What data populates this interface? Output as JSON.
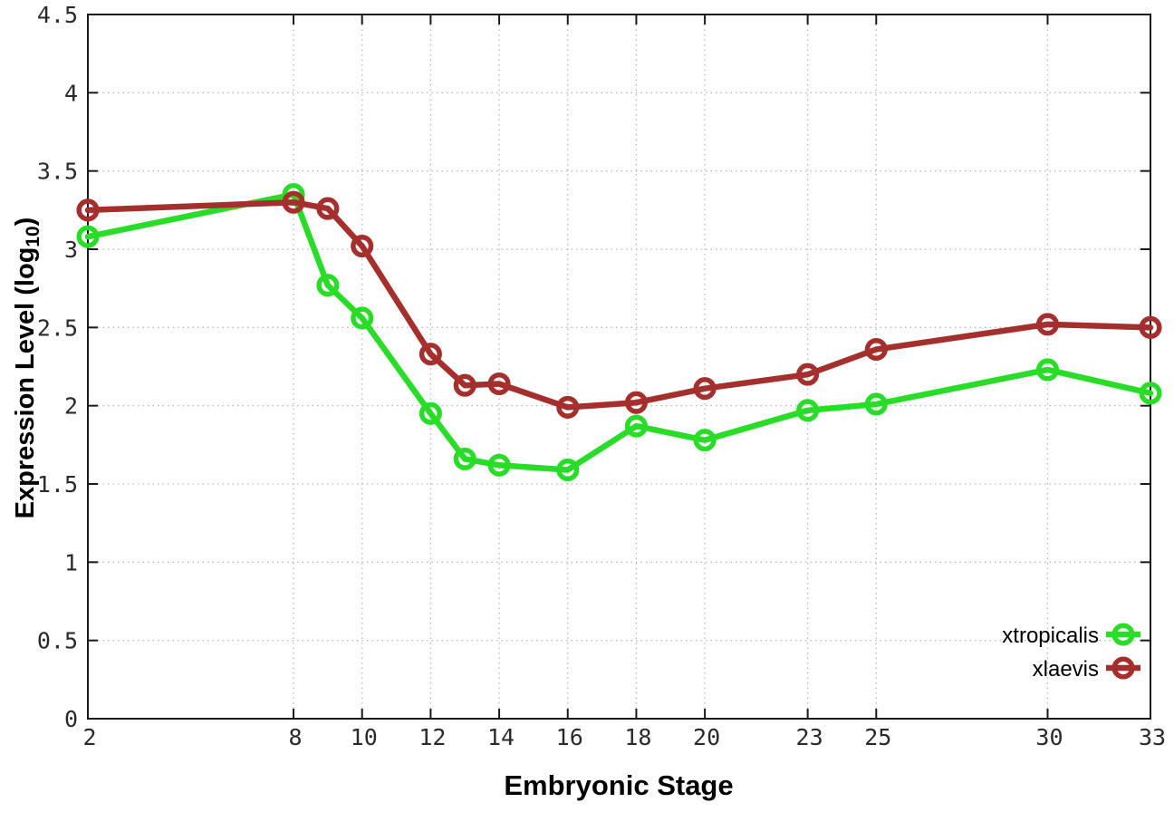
{
  "figure": {
    "background": "#ffffff",
    "border_color": "#1a1a1a",
    "grid_color": "#b8b8b8"
  },
  "chart_data": {
    "type": "line",
    "title": "",
    "xlabel": "Embryonic Stage",
    "ylabel": "Expression Level (log10)",
    "ylabel_parts": {
      "pre": "Expression Level (log",
      "sub": "10",
      "post": ")"
    },
    "xlim": [
      2,
      33
    ],
    "ylim": [
      0,
      4.5
    ],
    "grid": true,
    "legend_position": "inside-bottom-right",
    "x": [
      2,
      8,
      9,
      10,
      12,
      13,
      14,
      16,
      18,
      20,
      23,
      25,
      30,
      33
    ],
    "x_tick_labels": [
      "2",
      "8",
      "10",
      "12",
      "14",
      "16",
      "18",
      "20",
      "23",
      "25",
      "30",
      "33"
    ],
    "x_tick_values": [
      2,
      8,
      10,
      12,
      14,
      16,
      18,
      20,
      23,
      25,
      30,
      33
    ],
    "y_tick_labels": [
      "0",
      "0.5",
      "1",
      "1.5",
      "2",
      "2.5",
      "3",
      "3.5",
      "4",
      "4.5"
    ],
    "y_tick_values": [
      0,
      0.5,
      1,
      1.5,
      2,
      2.5,
      3,
      3.5,
      4,
      4.5
    ],
    "series": [
      {
        "name": "xtropicalis",
        "color": "#28dc28",
        "values": [
          3.08,
          3.35,
          2.77,
          2.56,
          1.95,
          1.66,
          1.62,
          1.59,
          1.87,
          1.78,
          1.97,
          2.01,
          2.23,
          2.08
        ]
      },
      {
        "name": "xlaevis",
        "color": "#a42f2c",
        "values": [
          3.25,
          3.3,
          3.26,
          3.02,
          2.33,
          2.13,
          2.14,
          1.99,
          2.02,
          2.11,
          2.2,
          2.36,
          2.52,
          2.5
        ]
      }
    ]
  }
}
